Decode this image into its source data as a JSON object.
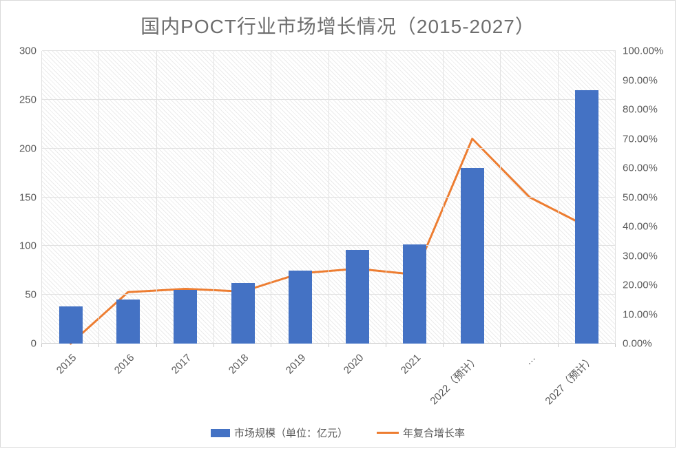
{
  "title": "国内POCT行业市场增长情况（2015-2027）",
  "chart_data": {
    "type": "combo",
    "subtypes": [
      "bar",
      "line"
    ],
    "title": "国内POCT行业市场增长情况（2015-2027）",
    "categories": [
      "2015",
      "2016",
      "2017",
      "2018",
      "2019",
      "2020",
      "2021",
      "2022（预计）",
      "…",
      "2027（预计）"
    ],
    "series": [
      {
        "name": "市场规模（单位：亿元）",
        "type": "bar",
        "axis": "left",
        "color": "#4472C4",
        "values": [
          38,
          45,
          55,
          62,
          75,
          96,
          102,
          180,
          null,
          260
        ]
      },
      {
        "name": "年复合增长率",
        "type": "line",
        "axis": "right",
        "unit": "%",
        "color": "#ED7D31",
        "values": [
          0,
          17.6,
          18.7,
          17.8,
          24,
          25.6,
          23.6,
          70,
          50,
          40
        ]
      }
    ],
    "left_axis": {
      "min": 0,
      "max": 300,
      "step": 50,
      "ticks": [
        "0",
        "50",
        "100",
        "150",
        "200",
        "250",
        "300"
      ]
    },
    "right_axis": {
      "min": 0,
      "max": 100,
      "step": 10,
      "ticks": [
        "0.00%",
        "10.00%",
        "20.00%",
        "30.00%",
        "40.00%",
        "50.00%",
        "60.00%",
        "70.00%",
        "80.00%",
        "90.00%",
        "100.00%"
      ]
    },
    "grid": true,
    "x_labels_rotated_deg": 45,
    "legend_position": "bottom",
    "plot_background": "diagonal-hatch"
  },
  "legend": {
    "items": [
      {
        "label": "市场规模（单位：亿元）",
        "marker": "bar",
        "color": "#4472C4"
      },
      {
        "label": "年复合增长率",
        "marker": "line",
        "color": "#ED7D31"
      }
    ]
  },
  "colors": {
    "bar": "#4472C4",
    "line": "#ED7D31",
    "grid": "#e2e2e2",
    "axis_text": "#595959",
    "title_text": "#6e6e6e",
    "card_border": "#d9d9d9"
  }
}
